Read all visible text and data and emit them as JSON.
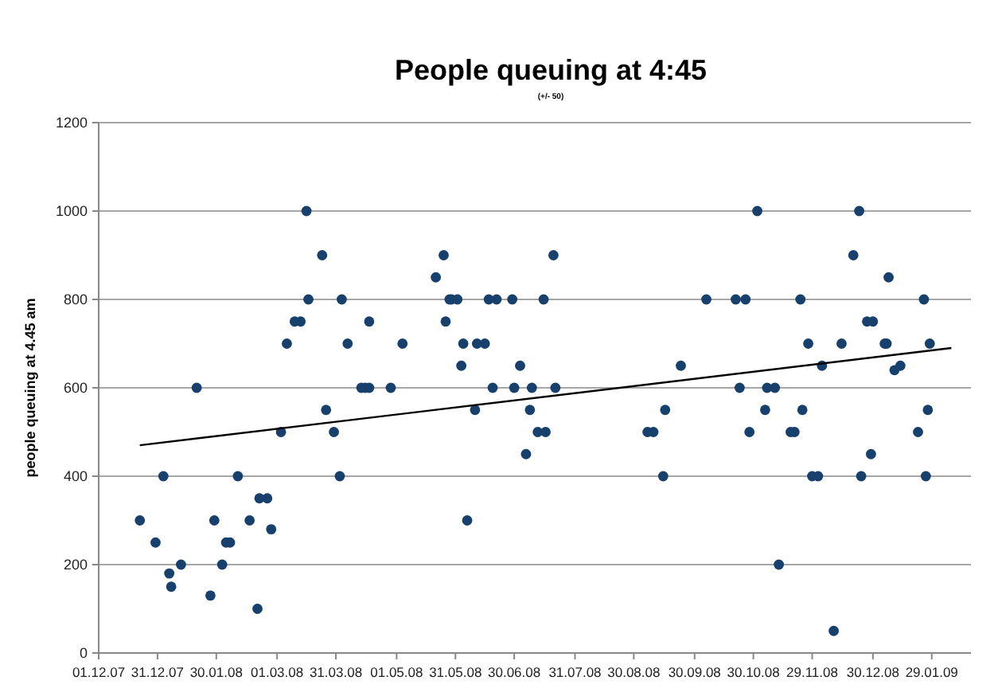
{
  "chart_data": {
    "type": "scatter",
    "title": "People queuing at 4:45",
    "subtitle": "(+/- 50)",
    "ylabel": "people queuing at 4.45 am",
    "xlim": [
      "2007-12-01",
      "2009-02-18"
    ],
    "xticks": [
      {
        "value": "2007-12-01",
        "label": "01.12.07"
      },
      {
        "value": "2007-12-31",
        "label": "31.12.07"
      },
      {
        "value": "2008-01-30",
        "label": "30.01.08"
      },
      {
        "value": "2008-03-01",
        "label": "01.03.08"
      },
      {
        "value": "2008-03-31",
        "label": "31.03.08"
      },
      {
        "value": "2008-05-01",
        "label": "01.05.08"
      },
      {
        "value": "2008-05-31",
        "label": "31.05.08"
      },
      {
        "value": "2008-06-30",
        "label": "30.06.08"
      },
      {
        "value": "2008-07-31",
        "label": "31.07.08"
      },
      {
        "value": "2008-08-30",
        "label": "30.08.08"
      },
      {
        "value": "2008-09-30",
        "label": "30.09.08"
      },
      {
        "value": "2008-10-30",
        "label": "30.10.08"
      },
      {
        "value": "2008-11-29",
        "label": "29.11.08"
      },
      {
        "value": "2008-12-30",
        "label": "30.12.08"
      },
      {
        "value": "2009-01-29",
        "label": "29.01.09"
      }
    ],
    "ylim": [
      0,
      1200
    ],
    "yticks": [
      0,
      200,
      400,
      600,
      800,
      1000,
      1200
    ],
    "grid": "y",
    "series": [
      {
        "marker": "circle",
        "color": "#17406d",
        "x": [
          "2007-12-22",
          "2007-12-30",
          "2008-01-03",
          "2008-01-06",
          "2008-01-07",
          "2008-01-12",
          "2008-01-20",
          "2008-01-27",
          "2008-01-29",
          "2008-02-02",
          "2008-02-04",
          "2008-02-06",
          "2008-02-10",
          "2008-02-16",
          "2008-02-20",
          "2008-02-21",
          "2008-02-25",
          "2008-02-27",
          "2008-03-03",
          "2008-03-06",
          "2008-03-10",
          "2008-03-13",
          "2008-03-16",
          "2008-03-17",
          "2008-03-24",
          "2008-03-26",
          "2008-03-30",
          "2008-04-02",
          "2008-04-03",
          "2008-04-06",
          "2008-04-13",
          "2008-04-15",
          "2008-04-17",
          "2008-04-17",
          "2008-04-28",
          "2008-05-04",
          "2008-05-21",
          "2008-05-25",
          "2008-05-26",
          "2008-05-28",
          "2008-05-29",
          "2008-06-01",
          "2008-06-03",
          "2008-06-04",
          "2008-06-06",
          "2008-06-10",
          "2008-06-11",
          "2008-06-15",
          "2008-06-17",
          "2008-06-19",
          "2008-06-21",
          "2008-06-29",
          "2008-06-30",
          "2008-07-03",
          "2008-07-06",
          "2008-07-08",
          "2008-07-09",
          "2008-07-12",
          "2008-07-15",
          "2008-07-16",
          "2008-07-20",
          "2008-07-21",
          "2008-09-06",
          "2008-09-09",
          "2008-09-14",
          "2008-09-15",
          "2008-09-23",
          "2008-10-06",
          "2008-10-21",
          "2008-10-23",
          "2008-10-26",
          "2008-10-28",
          "2008-11-01",
          "2008-11-05",
          "2008-11-06",
          "2008-11-10",
          "2008-11-12",
          "2008-11-18",
          "2008-11-20",
          "2008-11-23",
          "2008-11-24",
          "2008-11-27",
          "2008-11-29",
          "2008-12-02",
          "2008-12-04",
          "2008-12-10",
          "2008-12-14",
          "2008-12-20",
          "2008-12-23",
          "2008-12-24",
          "2008-12-27",
          "2008-12-29",
          "2008-12-30",
          "2009-01-05",
          "2009-01-06",
          "2009-01-07",
          "2009-01-10",
          "2009-01-13",
          "2009-01-22",
          "2009-01-25",
          "2009-01-26",
          "2009-01-27",
          "2009-01-28"
        ],
        "values": [
          300,
          250,
          400,
          180,
          150,
          200,
          600,
          130,
          300,
          200,
          250,
          250,
          400,
          300,
          100,
          350,
          350,
          280,
          500,
          700,
          750,
          750,
          1000,
          800,
          900,
          550,
          500,
          400,
          800,
          700,
          600,
          600,
          600,
          750,
          600,
          700,
          850,
          900,
          750,
          800,
          800,
          800,
          650,
          700,
          300,
          550,
          700,
          700,
          800,
          600,
          800,
          800,
          600,
          650,
          450,
          550,
          600,
          500,
          800,
          500,
          900,
          600,
          500,
          500,
          400,
          550,
          650,
          800,
          800,
          600,
          800,
          500,
          1000,
          550,
          600,
          600,
          200,
          500,
          500,
          800,
          550,
          700,
          400,
          400,
          650,
          50,
          700,
          900,
          1000,
          400,
          750,
          450,
          750,
          700,
          700,
          850,
          640,
          650,
          500,
          800,
          400,
          550,
          700
        ]
      },
      {
        "type": "line",
        "color": "#000000",
        "x": [
          "2007-12-22",
          "2009-02-08"
        ],
        "values": [
          470,
          690
        ]
      }
    ]
  }
}
